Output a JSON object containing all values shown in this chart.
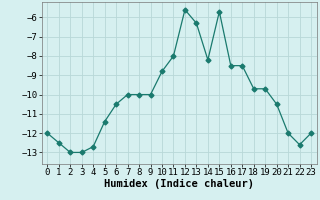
{
  "x": [
    0,
    1,
    2,
    3,
    4,
    5,
    6,
    7,
    8,
    9,
    10,
    11,
    12,
    13,
    14,
    15,
    16,
    17,
    18,
    19,
    20,
    21,
    22,
    23
  ],
  "y": [
    -12.0,
    -12.5,
    -13.0,
    -13.0,
    -12.7,
    -11.4,
    -10.5,
    -10.0,
    -10.0,
    -10.0,
    -8.8,
    -8.0,
    -5.6,
    -6.3,
    -8.2,
    -5.7,
    -8.5,
    -8.5,
    -9.7,
    -9.7,
    -10.5,
    -12.0,
    -12.6,
    -12.0
  ],
  "xlim": [
    -0.5,
    23.5
  ],
  "ylim": [
    -13.6,
    -5.2
  ],
  "yticks": [
    -13,
    -12,
    -11,
    -10,
    -9,
    -8,
    -7,
    -6
  ],
  "xticks": [
    0,
    1,
    2,
    3,
    4,
    5,
    6,
    7,
    8,
    9,
    10,
    11,
    12,
    13,
    14,
    15,
    16,
    17,
    18,
    19,
    20,
    21,
    22,
    23
  ],
  "xlabel": "Humidex (Indice chaleur)",
  "line_color": "#1a7a6e",
  "marker": "D",
  "bg_color": "#d6f0f0",
  "grid_color": "#b8d8d8",
  "tick_fontsize": 6.5,
  "xlabel_fontsize": 7.5
}
